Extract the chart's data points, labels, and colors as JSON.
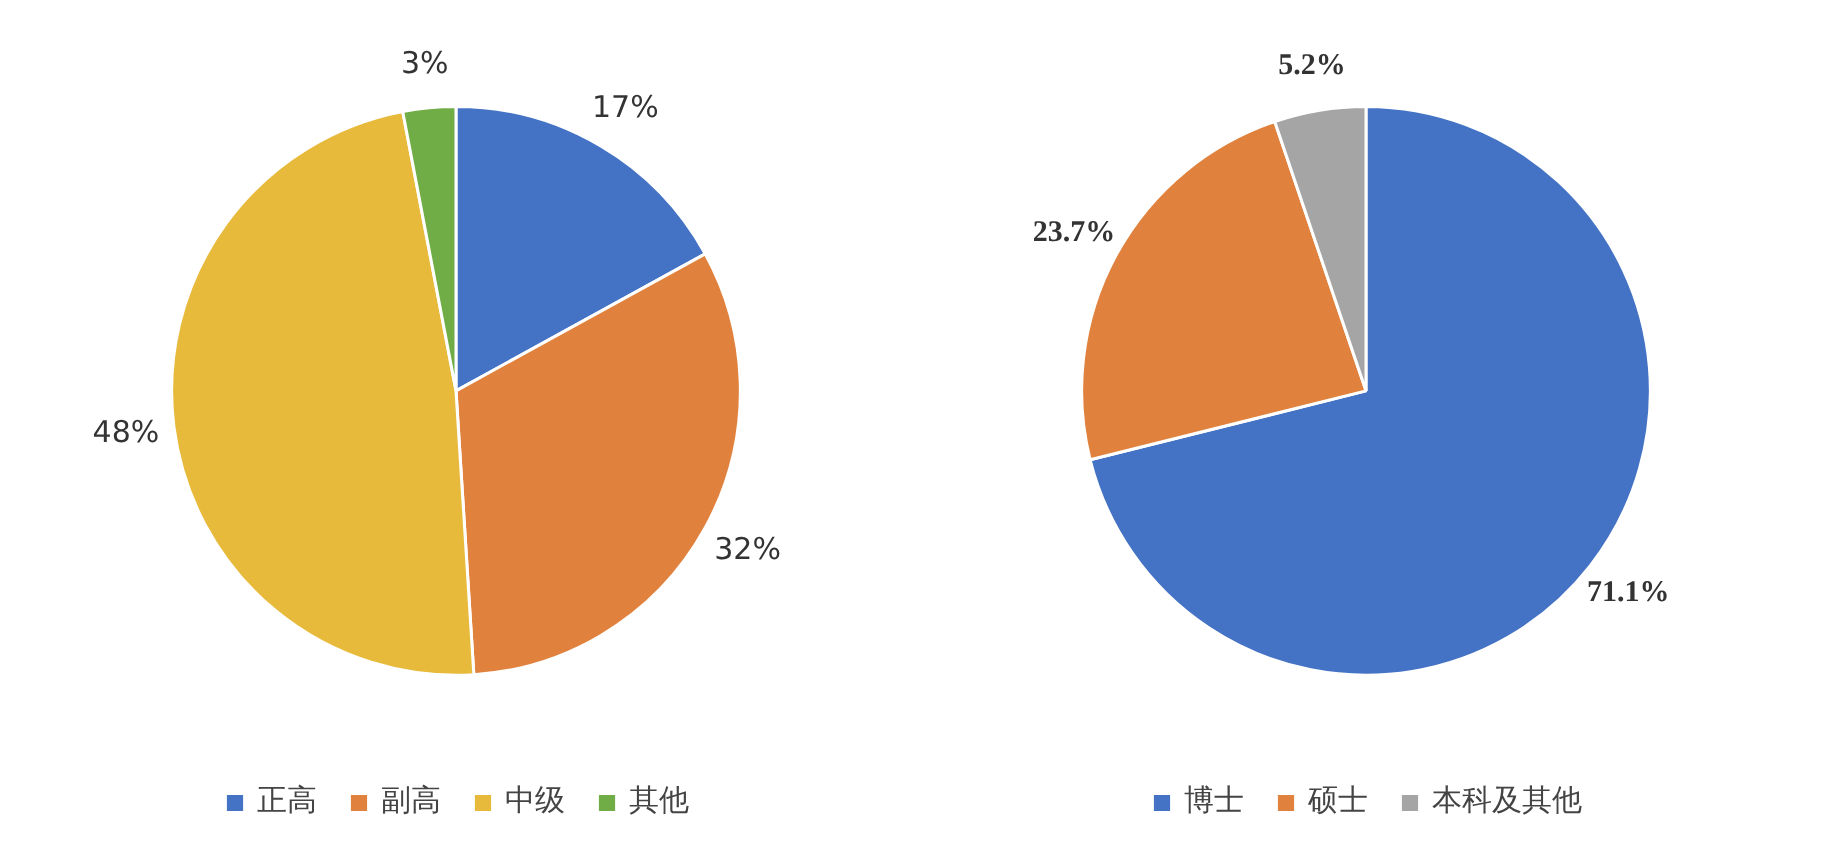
{
  "chart_data": [
    {
      "type": "pie",
      "categories": [
        "正高",
        "副高",
        "中级",
        "其他"
      ],
      "values": [
        17,
        32,
        48,
        3
      ],
      "colors": [
        "#4472c4",
        "#e0823d",
        "#e8ba3c",
        "#70ad47"
      ],
      "value_labels": [
        "17%",
        "32%",
        "48%",
        "3%"
      ],
      "legend": "bottom"
    },
    {
      "type": "pie",
      "categories": [
        "博士",
        "硕士",
        "本科及其他"
      ],
      "values": [
        71.1,
        23.7,
        5.2
      ],
      "colors": [
        "#4472c4",
        "#e0823d",
        "#a5a5a5"
      ],
      "value_labels": [
        "71.1%",
        "23.7%",
        "5.2%"
      ],
      "legend": "bottom"
    }
  ]
}
